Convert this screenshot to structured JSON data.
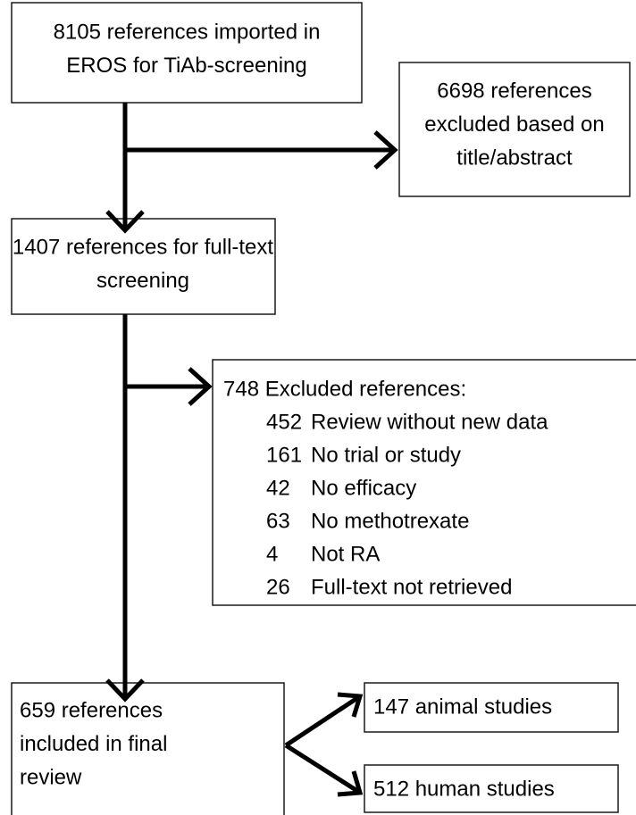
{
  "nodes": [
    {
      "lines": [
        "8105 references imported in",
        "EROS for TiAb-screening"
      ]
    },
    {
      "lines": [
        "6698 references",
        "excluded based on",
        "title/abstract"
      ]
    },
    {
      "lines": [
        "1407 references for full-text",
        "screening"
      ]
    },
    {
      "heading": "748 Excluded references:",
      "items": [
        {
          "count": 452,
          "reason": "Review without new data"
        },
        {
          "count": 161,
          "reason": "No trial or study"
        },
        {
          "count": 42,
          "reason": "No efficacy"
        },
        {
          "count": 63,
          "reason": "No methotrexate"
        },
        {
          "count": 4,
          "reason": "Not RA"
        },
        {
          "count": 26,
          "reason": "Full-text not retrieved"
        }
      ]
    },
    {
      "lines": [
        "659 references",
        "included in final",
        "review"
      ]
    },
    {
      "lines": [
        "147 animal studies"
      ]
    },
    {
      "lines": [
        "512 human studies"
      ]
    }
  ]
}
